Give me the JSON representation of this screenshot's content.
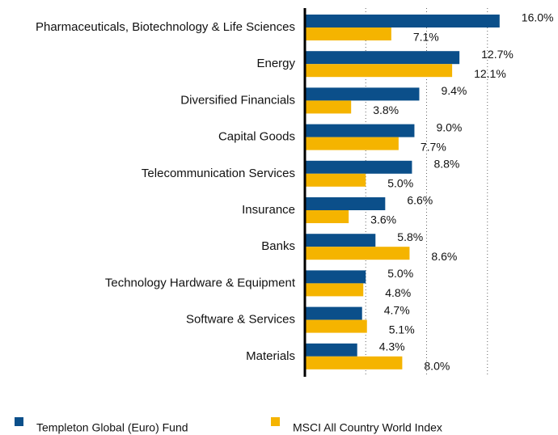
{
  "chart_data": {
    "type": "hbar",
    "categories": [
      "Pharmaceuticals, Biotechnology & Life Sciences",
      "Energy",
      "Diversified Financials",
      "Capital Goods",
      "Telecommunication Services",
      "Insurance",
      "Banks",
      "Technology Hardware & Equipment",
      "Software & Services",
      "Materials"
    ],
    "series": [
      {
        "name": "Templeton Global (Euro) Fund",
        "color": "#0b4f8a",
        "values": [
          16.0,
          12.7,
          9.4,
          9.0,
          8.8,
          6.6,
          5.8,
          5.0,
          4.7,
          4.3
        ],
        "value_labels": [
          "16.0%",
          "12.7%",
          "9.4%",
          "9.0%",
          "8.8%",
          "6.6%",
          "5.8%",
          "5.0%",
          "4.7%",
          "4.3%"
        ]
      },
      {
        "name": "MSCI All Country World Index",
        "color": "#f5b400",
        "values": [
          7.1,
          12.1,
          3.8,
          7.7,
          5.0,
          3.6,
          8.6,
          4.8,
          5.1,
          8.0
        ],
        "value_labels": [
          "7.1%",
          "12.1%",
          "3.8%",
          "7.7%",
          "5.0%",
          "3.6%",
          "8.6%",
          "4.8%",
          "5.1%",
          "8.0%"
        ]
      }
    ],
    "xlim": [
      0,
      20
    ],
    "xticks": [
      5,
      10,
      15
    ],
    "grid": true
  }
}
